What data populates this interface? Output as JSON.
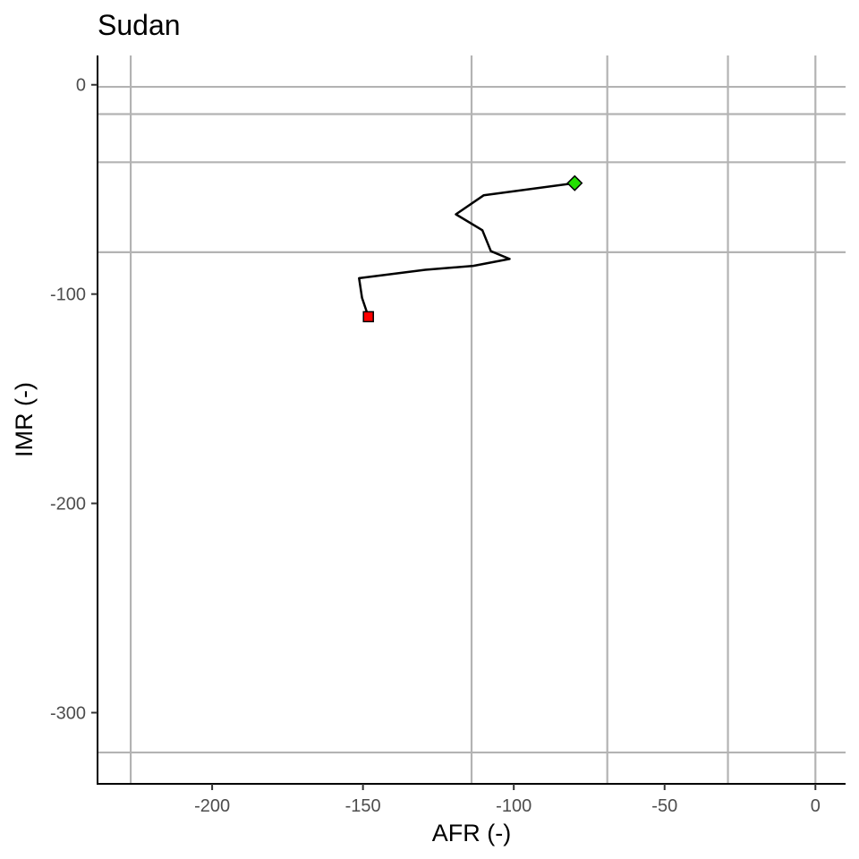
{
  "chart_data": {
    "type": "line",
    "title": "Sudan",
    "xlabel": "AFR (-)",
    "ylabel": "IMR (-)",
    "xlim": [
      -238,
      10
    ],
    "ylim": [
      -334,
      14
    ],
    "grid": false,
    "x_ticks": [
      -200,
      -150,
      -100,
      -50,
      0
    ],
    "x_tick_labels": [
      "-200",
      "-150",
      "-100",
      "-50",
      "0"
    ],
    "y_ticks": [
      0,
      -100,
      -200,
      -300
    ],
    "y_tick_labels": [
      "0",
      "-100",
      "-200",
      "-300"
    ],
    "reference_lines": {
      "vertical": [
        -227,
        -114,
        -69,
        -29,
        0
      ],
      "horizontal": [
        -1,
        -14,
        -37,
        -80,
        -319
      ]
    },
    "series": [
      {
        "name": "trajectory",
        "x": [
          -79.8,
          -110,
          -119.2,
          -110.4,
          -107.6,
          -101.4,
          -113.4,
          -129.3,
          -151.3,
          -150.3,
          -148.2
        ],
        "y": [
          -47,
          -52.8,
          -61.9,
          -69.5,
          -79.5,
          -83.2,
          -86.5,
          -88.4,
          -92.4,
          -101.8,
          -110.8
        ]
      }
    ],
    "markers": [
      {
        "name": "start",
        "shape": "diamond",
        "color": "#22e000",
        "x": -79.8,
        "y": -47
      },
      {
        "name": "end",
        "shape": "square",
        "color": "#ff0000",
        "x": -148.2,
        "y": -110.8
      }
    ]
  }
}
